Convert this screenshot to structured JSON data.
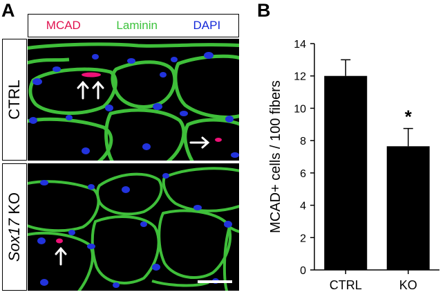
{
  "figure": {
    "panel_a_letter": "A",
    "panel_b_letter": "B",
    "legend": [
      {
        "text": "MCAD",
        "color": "#e0114f"
      },
      {
        "text": "Laminin",
        "color": "#3cc23c"
      },
      {
        "text": "DAPI",
        "color": "#1428d8"
      }
    ],
    "rows": [
      {
        "label_main": "CTRL",
        "label_italic": ""
      },
      {
        "label_main": " KO",
        "label_italic": "Sox17"
      }
    ]
  },
  "chart_data": {
    "type": "bar",
    "categories": [
      "CTRL",
      "KO"
    ],
    "values": [
      12.0,
      7.65
    ],
    "error": [
      1.0,
      1.1
    ],
    "annotations": [
      "",
      "*"
    ],
    "ylabel": "MCAD+ cells / 100 fibers",
    "ylim": [
      0,
      14
    ],
    "yticks": [
      0,
      2,
      4,
      6,
      8,
      10,
      12,
      14
    ],
    "bar_color": "#000000"
  }
}
